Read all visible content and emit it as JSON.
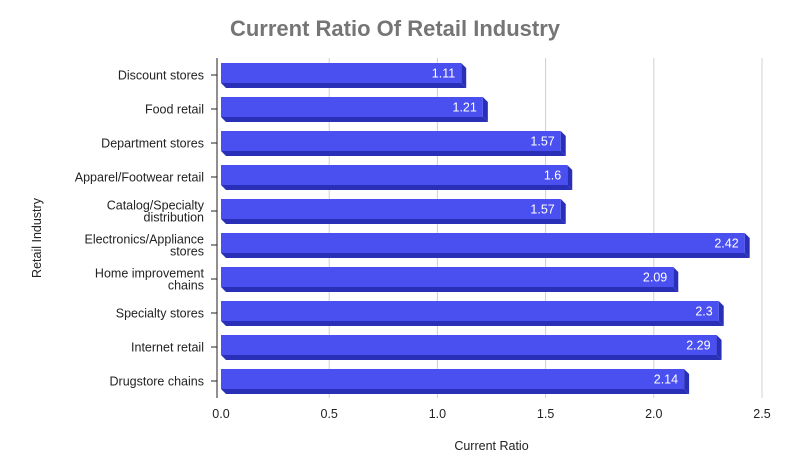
{
  "chart_data": {
    "type": "bar",
    "orientation": "horizontal",
    "title": "Current Ratio Of Retail Industry",
    "xlabel": "Current Ratio",
    "ylabel": "Retail Industry",
    "xlim": [
      0,
      2.5
    ],
    "xticks": [
      "0.0",
      "0.5",
      "1.0",
      "1.5",
      "2.0",
      "2.5"
    ],
    "grid": true,
    "categories": [
      [
        "Discount stores"
      ],
      [
        "Food retail"
      ],
      [
        "Department stores"
      ],
      [
        "Apparel/Footwear retail"
      ],
      [
        "Catalog/Specialty",
        "distribution"
      ],
      [
        "Electronics/Appliance",
        "stores"
      ],
      [
        "Home improvement",
        "chains"
      ],
      [
        "Specialty stores"
      ],
      [
        "Internet retail"
      ],
      [
        "Drugstore chains"
      ]
    ],
    "values": [
      1.11,
      1.21,
      1.57,
      1.6,
      1.57,
      2.42,
      2.09,
      2.3,
      2.29,
      2.14
    ],
    "value_labels": [
      "1.11",
      "1.21",
      "1.57",
      "1.6",
      "1.57",
      "2.42",
      "2.09",
      "2.3",
      "2.29",
      "2.14"
    ],
    "colors": {
      "bar": "#4a4ff0",
      "bar_dark": "#2a2fb8",
      "grid": "#d0d0d0",
      "axis": "#222222"
    }
  }
}
